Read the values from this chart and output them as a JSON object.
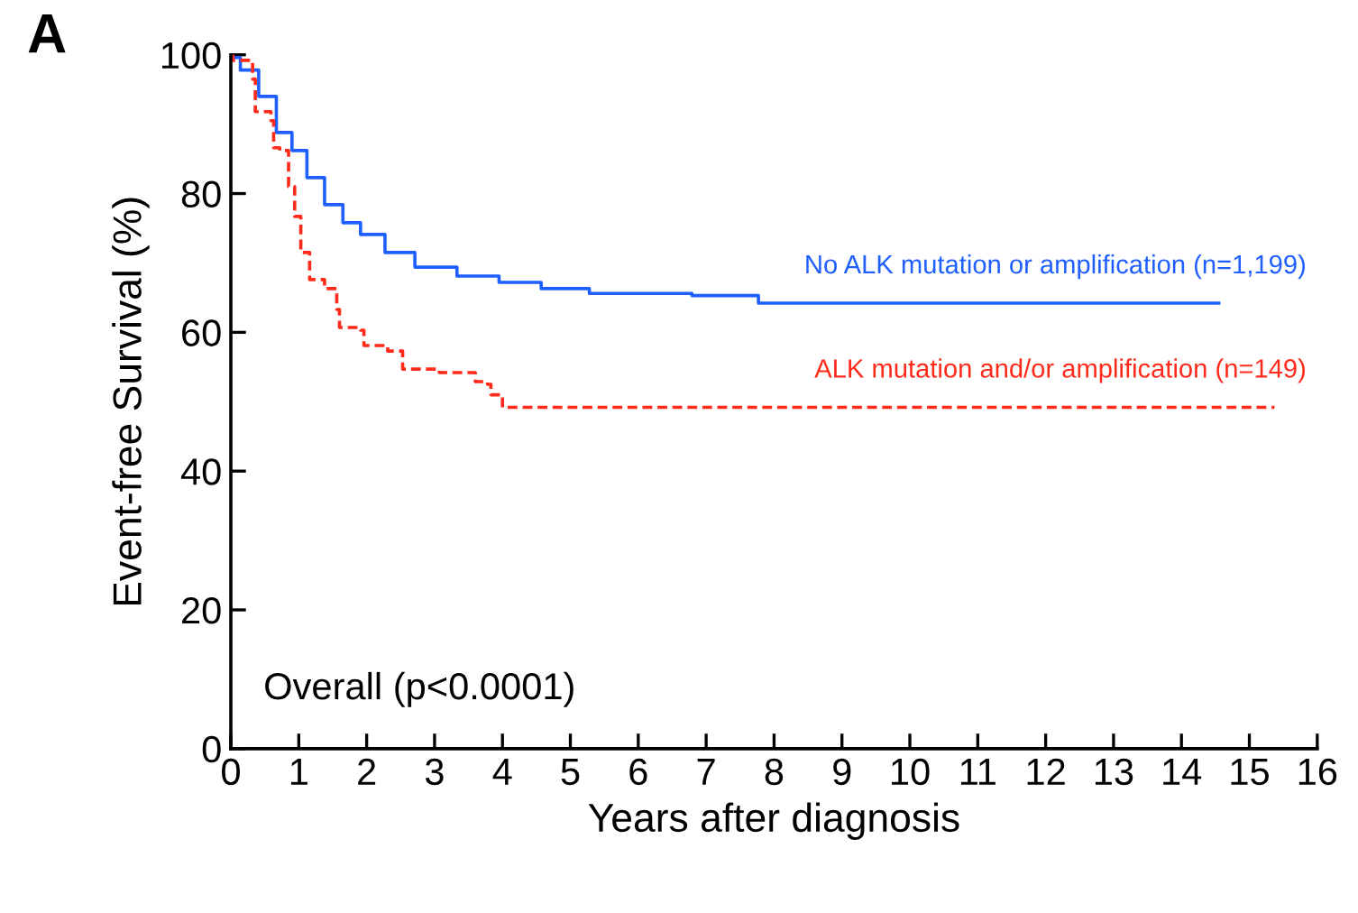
{
  "chart_data": {
    "type": "step",
    "xlabel": "Years after diagnosis",
    "ylabel": "Event-free Survival (%)",
    "annotations": [
      "A",
      "Overall (p<0.0001)"
    ],
    "xlim": [
      0,
      16
    ],
    "xticks": [
      0,
      1,
      2,
      3,
      4,
      5,
      6,
      7,
      8,
      9,
      10,
      11,
      12,
      13,
      14,
      15,
      16
    ],
    "ylim": [
      0,
      100
    ],
    "yticks": [
      0,
      20,
      40,
      60,
      80,
      100
    ],
    "grid": false,
    "legend": false,
    "series": [
      {
        "name": "No ALK mutation or amplification (n=1,199)",
        "color": "#1f5fff",
        "line_style": "solid",
        "x": [
          0,
          0.03,
          0.14,
          0.41,
          0.67,
          0.9,
          1.12,
          1.38,
          1.65,
          1.91,
          2.27,
          2.71,
          3.33,
          3.95,
          4.57,
          5.28,
          6.79,
          7.77,
          14.55
        ],
        "values": [
          100,
          99.6,
          97.8,
          94,
          88.8,
          86.2,
          82.3,
          78.4,
          75.8,
          74.1,
          71.5,
          69.4,
          68.1,
          67.2,
          66.3,
          65.6,
          65.3,
          64.2,
          64.2
        ]
      },
      {
        "name": "ALK mutation and/or amplification (n=149)",
        "color": "#ff2a1a",
        "line_style": "dashed",
        "x": [
          0,
          0.03,
          0.32,
          0.36,
          0.59,
          0.63,
          0.72,
          0.85,
          0.94,
          1.03,
          1.16,
          1.38,
          1.56,
          1.6,
          1.91,
          1.96,
          2.31,
          2.53,
          3.07,
          3.6,
          3.78,
          3.83,
          4.0,
          15.37
        ],
        "values": [
          100,
          99.2,
          96.5,
          91.8,
          90.5,
          86.6,
          86.2,
          81,
          76.7,
          71.5,
          67.6,
          66.3,
          63.3,
          60.7,
          60.3,
          58.1,
          57.3,
          54.7,
          54.2,
          52.9,
          52.5,
          51,
          49.2,
          49.2
        ]
      }
    ]
  }
}
